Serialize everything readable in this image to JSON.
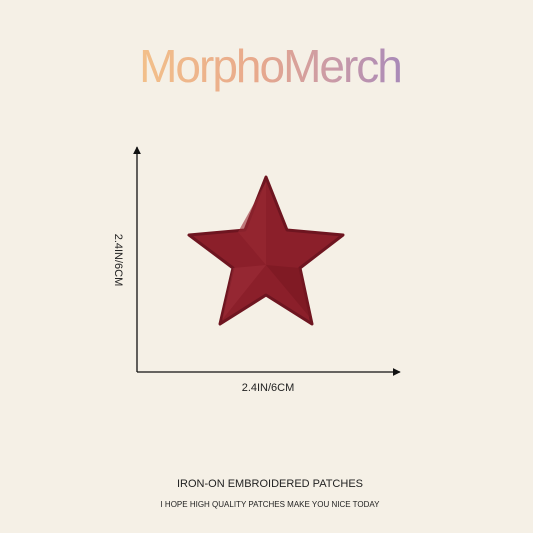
{
  "brand": "MorphoMerch",
  "dimensions": {
    "height": "2.4IN/6CM",
    "width": "2.4IN/6CM"
  },
  "footer": {
    "title": "IRON-ON EMBROIDERED PATCHES",
    "tagline": "I HOPE HIGH QUALITY PATCHES MAKE YOU NICE TODAY"
  }
}
